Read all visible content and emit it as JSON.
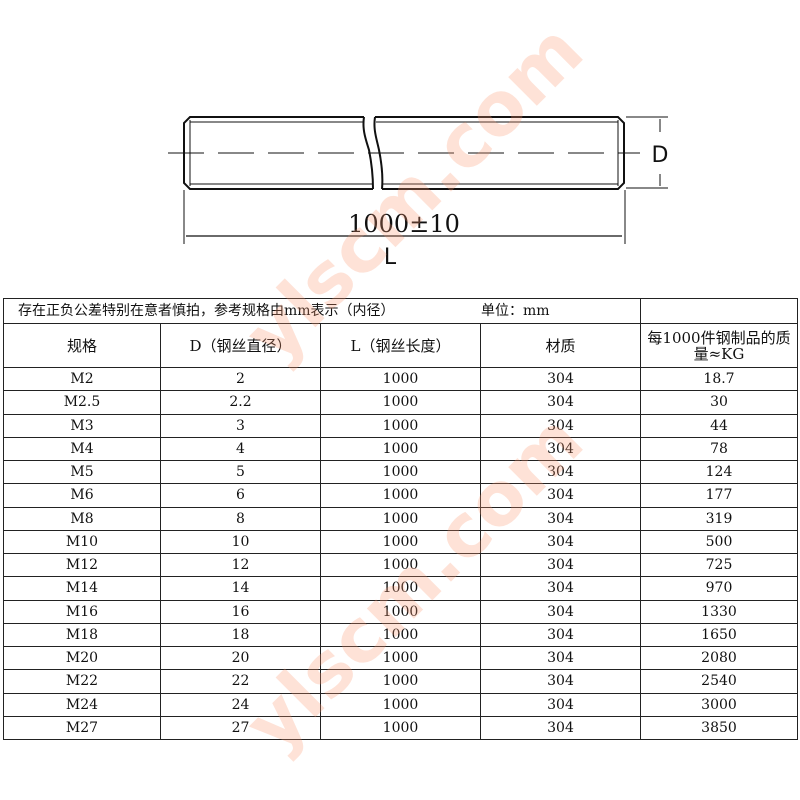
{
  "drawing": {
    "length_label": "1000±10",
    "L_label": "L",
    "D_label": "D"
  },
  "table": {
    "note": "存在正负公差特别在意者慎拍，参考规格由mm表示（内径）",
    "unit": "单位：mm",
    "headers": [
      "规格",
      "D（钢丝直径）",
      "L（钢丝长度）",
      "材质",
      "每1000件钢制品的质量≈KG"
    ],
    "rows": [
      [
        "M2",
        "2",
        "1000",
        "304",
        "18.7"
      ],
      [
        "M2.5",
        "2.2",
        "1000",
        "304",
        "30"
      ],
      [
        "M3",
        "3",
        "1000",
        "304",
        "44"
      ],
      [
        "M4",
        "4",
        "1000",
        "304",
        "78"
      ],
      [
        "M5",
        "5",
        "1000",
        "304",
        "124"
      ],
      [
        "M6",
        "6",
        "1000",
        "304",
        "177"
      ],
      [
        "M8",
        "8",
        "1000",
        "304",
        "319"
      ],
      [
        "M10",
        "10",
        "1000",
        "304",
        "500"
      ],
      [
        "M12",
        "12",
        "1000",
        "304",
        "725"
      ],
      [
        "M14",
        "14",
        "1000",
        "304",
        "970"
      ],
      [
        "M16",
        "16",
        "1000",
        "304",
        "1330"
      ],
      [
        "M18",
        "18",
        "1000",
        "304",
        "1650"
      ],
      [
        "M20",
        "20",
        "1000",
        "304",
        "2080"
      ],
      [
        "M22",
        "22",
        "1000",
        "304",
        "2540"
      ],
      [
        "M24",
        "24",
        "1000",
        "304",
        "3000"
      ],
      [
        "M27",
        "27",
        "1000",
        "304",
        "3850"
      ]
    ]
  },
  "watermark": "ylscm.com"
}
